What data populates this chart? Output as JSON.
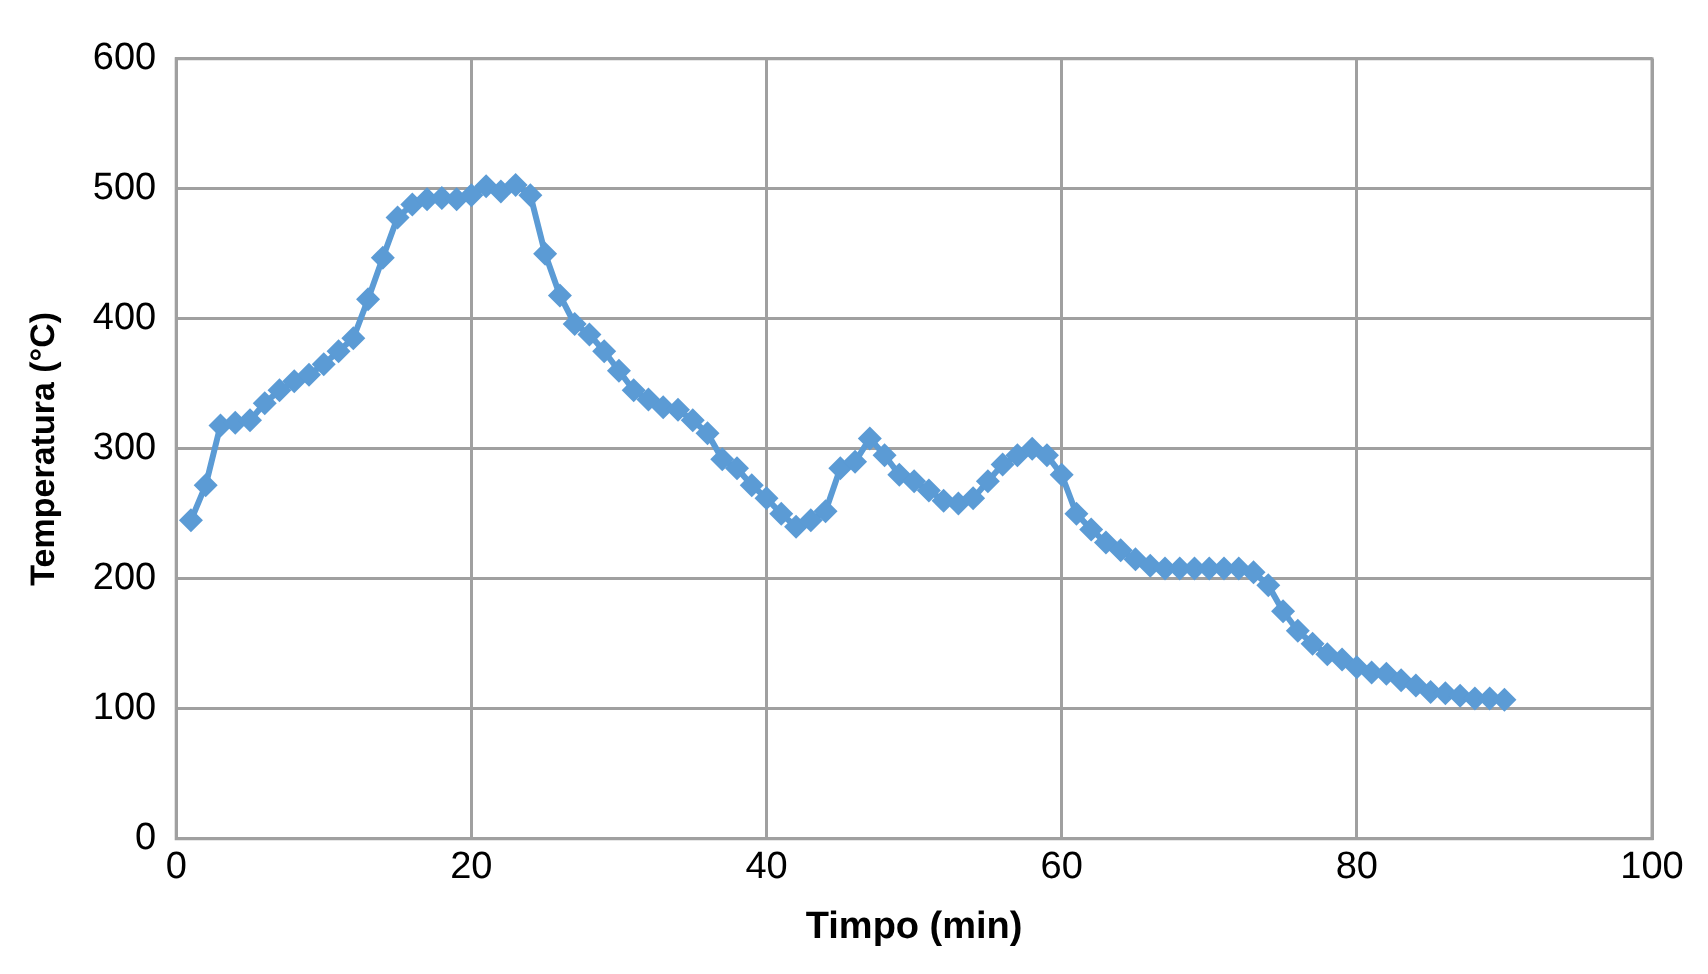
{
  "chart_data": {
    "type": "line",
    "xlabel": "Timpo (min)",
    "ylabel": "Temperatura (°C)",
    "x": [
      1,
      2,
      3,
      4,
      5,
      6,
      7,
      8,
      9,
      10,
      11,
      12,
      13,
      14,
      15,
      16,
      17,
      18,
      19,
      20,
      21,
      22,
      23,
      24,
      25,
      26,
      27,
      28,
      29,
      30,
      31,
      32,
      33,
      34,
      35,
      36,
      37,
      38,
      39,
      40,
      41,
      42,
      43,
      44,
      45,
      46,
      47,
      48,
      49,
      50,
      51,
      52,
      53,
      54,
      55,
      56,
      57,
      58,
      59,
      60,
      61,
      62,
      63,
      64,
      65,
      66,
      67,
      68,
      69,
      70,
      71,
      72,
      73,
      74,
      75,
      76,
      77,
      78,
      79,
      80,
      81,
      82,
      83,
      84,
      85,
      86,
      87,
      88,
      89,
      90
    ],
    "series": [
      {
        "color": "#5b9bd5",
        "values": [
          245,
          272,
          318,
          320,
          322,
          335,
          345,
          352,
          357,
          365,
          375,
          385,
          415,
          447,
          478,
          488,
          492,
          493,
          492,
          495,
          502,
          498,
          503,
          495,
          450,
          418,
          396,
          388,
          375,
          360,
          345,
          338,
          332,
          330,
          322,
          312,
          292,
          285,
          272,
          262,
          250,
          240,
          245,
          252,
          285,
          290,
          308,
          295,
          280,
          275,
          268,
          260,
          258,
          262,
          275,
          288,
          295,
          300,
          295,
          280,
          250,
          238,
          228,
          222,
          215,
          210,
          208,
          208,
          208,
          208,
          208,
          208,
          205,
          195,
          175,
          160,
          150,
          142,
          138,
          132,
          128,
          127,
          122,
          118,
          113,
          112,
          110,
          108,
          108,
          107
        ]
      }
    ],
    "xlim": [
      0,
      100
    ],
    "xticks": [
      0,
      20,
      40,
      60,
      80,
      100
    ],
    "ylim": [
      0,
      600
    ],
    "yticks": [
      0,
      100,
      200,
      300,
      400,
      500,
      600
    ],
    "grid": true,
    "legend": false,
    "marker": "diamond",
    "line_style": "solid"
  }
}
